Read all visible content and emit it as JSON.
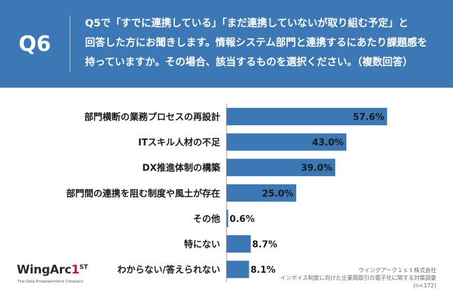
{
  "header": {
    "question_no": "Q6",
    "question_text": "Q5で「すでに連携している」「まだ連携していないが取り組む予定」と\n回答した方にお聞きします。情報システム部門と連携するにあたり課題感を\n持っていますか。その場合、該当するものを選択ください。（複数回答）"
  },
  "chart_data": {
    "type": "bar",
    "orientation": "horizontal",
    "categories": [
      "部門横断の業務プロセスの再設計",
      "ITスキル人材の不足",
      "DX推進体制の構築",
      "部門間の連携を阻む制度や風土が存在",
      "その他",
      "特にない",
      "わからない/答えられない"
    ],
    "values": [
      57.6,
      43.0,
      39.0,
      25.0,
      0.6,
      8.7,
      8.1
    ],
    "value_labels": [
      "57.6%",
      "43.0%",
      "39.0%",
      "25.0%",
      "0.6%",
      "8.7%",
      "8.1%"
    ],
    "bar_color": "#3b78b5",
    "xlim": [
      0,
      100
    ],
    "grid": false
  },
  "logo": {
    "brand_prefix": "WingArc",
    "brand_one": "1",
    "brand_st": "ST",
    "tagline": "The Data Empowerment Company"
  },
  "source": {
    "line1": "ウイングアーク１ｓｔ株式会社",
    "line2": "インボイス制度に向けた企業間取引の電子化に関する対策調査",
    "line3": "(n=172)"
  }
}
